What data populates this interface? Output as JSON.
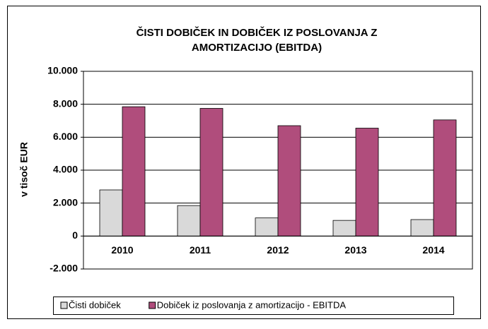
{
  "chart_data": {
    "type": "bar",
    "title": [
      "ČISTI DOBIČEK IN DOBIČEK IZ POSLOVANJA Z",
      "AMORTIZACIJO (EBITDA)"
    ],
    "y_label": "v tisoč EUR",
    "categories": [
      "2010",
      "2011",
      "2012",
      "2013",
      "2014"
    ],
    "series": [
      {
        "name": "Čisti dobiček",
        "color": "#d9d9d9",
        "values": [
          2800,
          1850,
          1100,
          950,
          1000
        ]
      },
      {
        "name": "Dobiček iz poslovanja z amortizacijo - EBITDA",
        "color": "#b04d7c",
        "values": [
          7850,
          7750,
          6700,
          6550,
          7050
        ]
      }
    ],
    "ylim": [
      -2000,
      10000
    ],
    "yticks": [
      {
        "value": -2000,
        "label": "-2.000"
      },
      0,
      {
        "value": 2000,
        "label": "2.000"
      },
      {
        "value": 4000,
        "label": "4.000"
      },
      {
        "value": 6000,
        "label": "6.000"
      },
      {
        "value": 8000,
        "label": "8.000"
      },
      {
        "value": 10000,
        "label": "10.000"
      }
    ],
    "grid": true,
    "legend": "bottom"
  }
}
